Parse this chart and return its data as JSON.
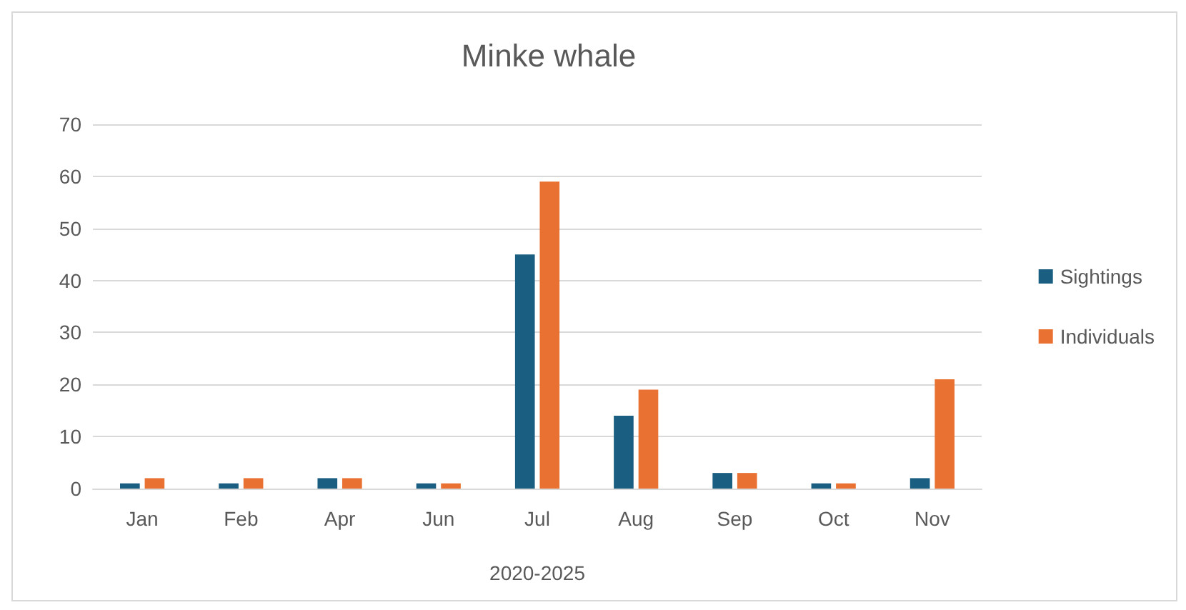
{
  "chart_data": {
    "type": "bar",
    "title": "Minke whale",
    "xlabel": "2020-2025",
    "categories": [
      "Jan",
      "Feb",
      "Apr",
      "Jun",
      "Jul",
      "Aug",
      "Sep",
      "Oct",
      "Nov"
    ],
    "series": [
      {
        "name": "Sightings",
        "color": "#1a5e82",
        "values": [
          1,
          1,
          2,
          1,
          45,
          14,
          3,
          1,
          2
        ]
      },
      {
        "name": "Individuals",
        "color": "#e97132",
        "values": [
          2,
          2,
          2,
          1,
          59,
          19,
          3,
          1,
          21
        ]
      }
    ],
    "ylim": [
      0,
      70
    ],
    "yticks": [
      0,
      10,
      20,
      30,
      40,
      50,
      60,
      70
    ],
    "grid": "y",
    "legend": "right"
  }
}
